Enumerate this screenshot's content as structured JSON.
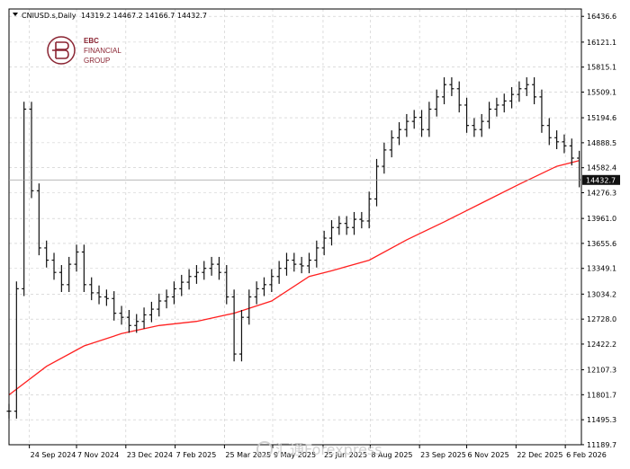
{
  "header": {
    "symbol": "CNIUSD.s,Daily",
    "ohlc": "14319.2 14467.2 14166.7 14432.7"
  },
  "logo": {
    "line1": "EBC",
    "line2": "FINANCIAL",
    "line3": "GROUP"
  },
  "watermark": "汇通Forexpress",
  "colors": {
    "price_bars": "#111111",
    "ma_line": "#ff2020",
    "grid": "#c8c8c8",
    "logo": "#8a2432",
    "current_price_box": "#111111"
  },
  "chart_data": {
    "type": "line",
    "title": "",
    "xlabel": "",
    "ylabel": "",
    "ylim": [
      11189,
      16527
    ],
    "grid": true,
    "legend": "none",
    "y_ticks": [
      "16436.6",
      "16121.1",
      "15815.1",
      "15509.1",
      "15194.6",
      "14888.5",
      "14582.4",
      "14276.3",
      "13961.0",
      "13655.6",
      "13349.1",
      "13034.2",
      "12728.0",
      "12422.2",
      "12107.3",
      "11801.7",
      "11495.3",
      "11189.7"
    ],
    "x_ticks": [
      "24 Sep 2024",
      "7 Nov 2024",
      "23 Dec 2024",
      "7 Feb 2025",
      "25 Mar 2025",
      "9 May 2025",
      "25 Jun 2025",
      "8 Aug 2025",
      "23 Sep 2025",
      "6 Nov 2025",
      "22 Dec 2025",
      "6 Feb 2026"
    ],
    "last_price": "14432.7",
    "series": [
      {
        "kind": "price",
        "x": [
          "2024-09-05",
          "2024-09-12",
          "2024-09-19",
          "2024-09-26",
          "2024-10-03",
          "2024-10-10",
          "2024-10-17",
          "2024-10-24",
          "2024-10-31",
          "2024-11-07",
          "2024-11-14",
          "2024-11-21",
          "2024-11-28",
          "2024-12-05",
          "2024-12-12",
          "2024-12-19",
          "2024-12-26",
          "2025-01-02",
          "2025-01-09",
          "2025-01-16",
          "2025-01-23",
          "2025-01-30",
          "2025-02-06",
          "2025-02-13",
          "2025-02-20",
          "2025-02-27",
          "2025-03-06",
          "2025-03-13",
          "2025-03-20",
          "2025-03-27",
          "2025-04-03",
          "2025-04-10",
          "2025-04-17",
          "2025-04-24",
          "2025-05-01",
          "2025-05-08",
          "2025-05-15",
          "2025-05-22",
          "2025-05-29",
          "2025-06-05",
          "2025-06-12",
          "2025-06-19",
          "2025-06-26",
          "2025-07-03",
          "2025-07-10",
          "2025-07-17",
          "2025-07-24",
          "2025-07-31",
          "2025-08-07",
          "2025-08-14",
          "2025-08-21",
          "2025-08-28",
          "2025-09-04",
          "2025-09-11",
          "2025-09-18",
          "2025-09-25",
          "2025-10-02",
          "2025-10-09",
          "2025-10-16",
          "2025-10-23",
          "2025-10-30",
          "2025-11-06",
          "2025-11-13",
          "2025-11-20",
          "2025-11-27",
          "2025-12-04",
          "2025-12-11",
          "2025-12-18",
          "2025-12-25",
          "2026-01-01",
          "2026-01-08",
          "2026-01-15",
          "2026-01-22",
          "2026-01-29",
          "2026-02-05",
          "2026-02-12",
          "2026-02-19"
        ],
        "values": [
          11600,
          13100,
          15300,
          14300,
          13600,
          13450,
          13300,
          13150,
          13400,
          13550,
          13150,
          13050,
          13000,
          12980,
          12800,
          12750,
          12650,
          12700,
          12780,
          12850,
          12950,
          13000,
          13100,
          13180,
          13250,
          13300,
          13350,
          13400,
          13300,
          13000,
          12300,
          12750,
          13000,
          13100,
          13150,
          13250,
          13350,
          13450,
          13400,
          13380,
          13450,
          13600,
          13720,
          13850,
          13900,
          13850,
          13950,
          13930,
          14200,
          14600,
          14800,
          14950,
          15050,
          15150,
          15200,
          15050,
          15300,
          15450,
          15600,
          15550,
          15350,
          15100,
          15050,
          15150,
          15300,
          15350,
          15400,
          15480,
          15550,
          15600,
          15450,
          15100,
          14950,
          14900,
          14850,
          14700,
          14432.7
        ]
      },
      {
        "kind": "moving-average",
        "x": [
          "2024-09-05",
          "2024-10-10",
          "2024-11-14",
          "2024-12-19",
          "2025-01-23",
          "2025-02-27",
          "2025-04-03",
          "2025-05-08",
          "2025-06-12",
          "2025-07-03",
          "2025-08-07",
          "2025-09-11",
          "2025-10-16",
          "2025-11-20",
          "2025-12-25",
          "2026-01-29",
          "2026-02-19"
        ],
        "values": [
          11800,
          12150,
          12400,
          12550,
          12650,
          12700,
          12800,
          12950,
          13250,
          13320,
          13450,
          13700,
          13920,
          14150,
          14380,
          14600,
          14670
        ]
      }
    ]
  }
}
